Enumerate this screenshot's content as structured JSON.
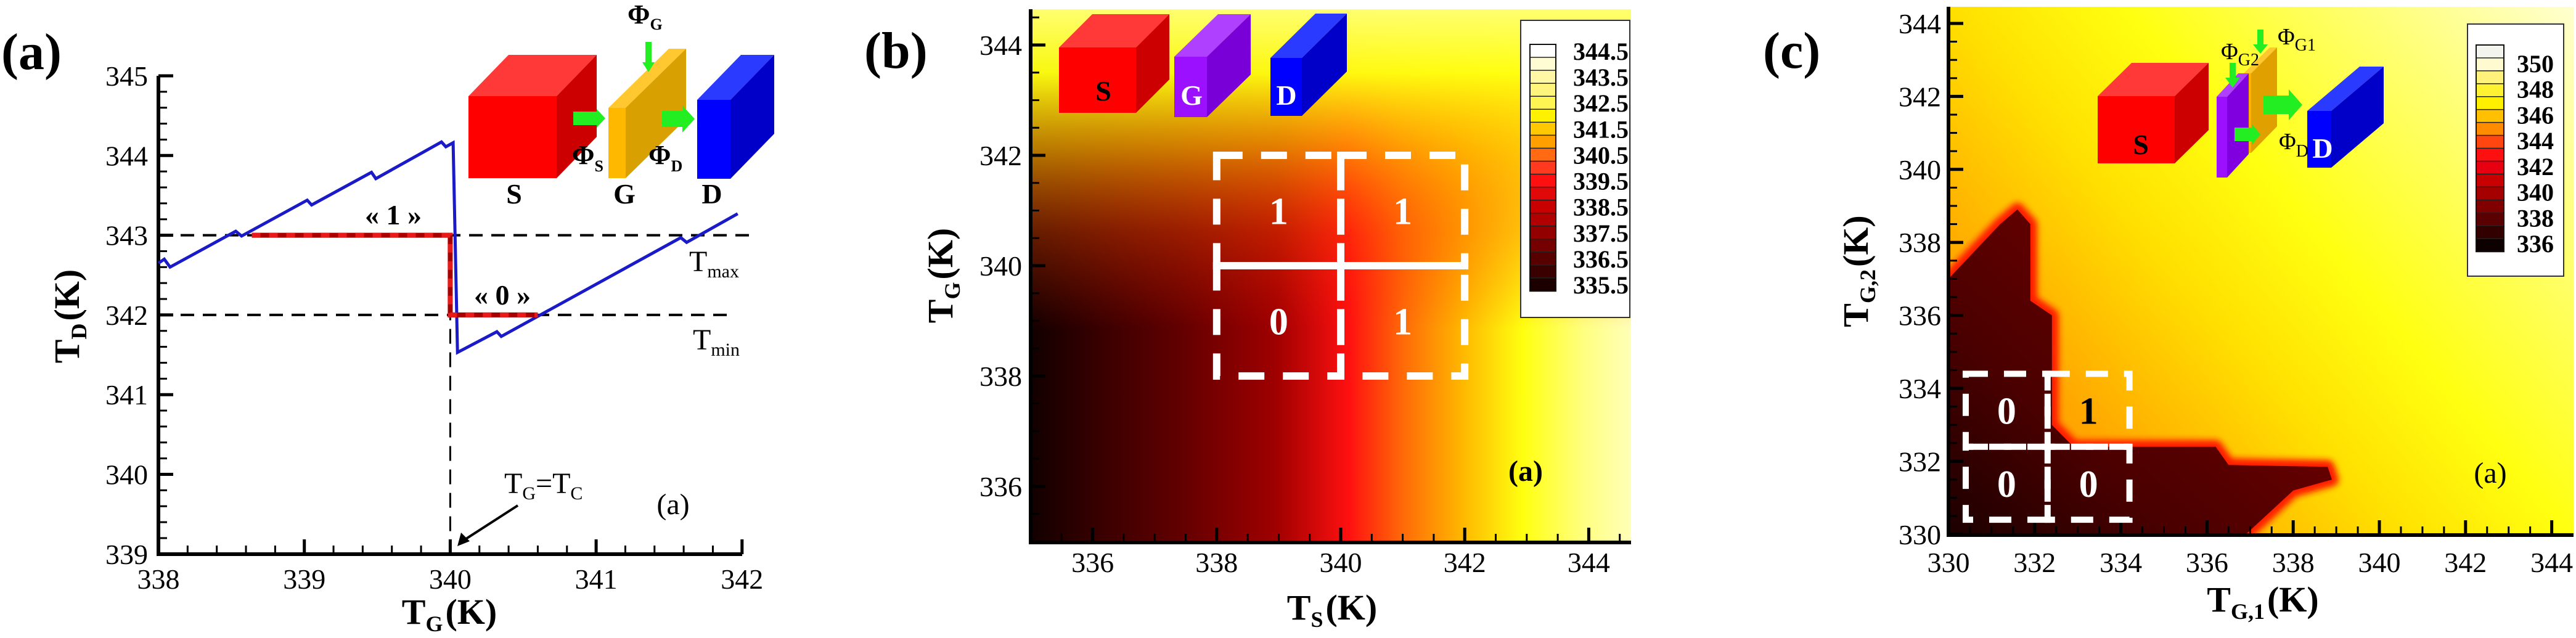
{
  "chart_data": [
    {
      "type": "line",
      "panel_label": "(a)",
      "xlabel": {
        "main": "T",
        "sub": "G",
        "unit": "(K)"
      },
      "ylabel": {
        "main": "T",
        "sub": "D",
        "unit": "(K)"
      },
      "xlim": [
        338,
        342
      ],
      "ylim": [
        339,
        345
      ],
      "x_ticks": [
        "338",
        "339",
        "340",
        "341",
        "342"
      ],
      "x_minor_step": 0.2,
      "y_ticks": [
        "339",
        "340",
        "341",
        "342",
        "343",
        "344",
        "345"
      ],
      "y_minor_step": 0.2,
      "grid": false,
      "series": [
        {
          "color": "#1a1ac8",
          "x": [
            338.0,
            338.04,
            338.08,
            338.53,
            338.57,
            339.02,
            339.05,
            339.46,
            339.49,
            339.94,
            339.97,
            340.02,
            340.05,
            340.32,
            340.35,
            341.58,
            341.62,
            341.97
          ],
          "y": [
            342.65,
            342.7,
            342.6,
            343.05,
            342.99,
            343.44,
            343.38,
            343.79,
            343.71,
            344.17,
            344.11,
            344.16,
            341.53,
            341.79,
            341.73,
            342.97,
            342.91,
            343.27
          ]
        },
        {
          "color": "#e81a1a",
          "x": [
            338.64,
            340.0,
            340.0,
            340.6
          ],
          "y": [
            343,
            343,
            342,
            342
          ]
        }
      ],
      "reference_lines": [
        {
          "axis": "y",
          "value": 343,
          "label": {
            "main": "T",
            "sub": "max"
          }
        },
        {
          "axis": "y",
          "value": 342,
          "label": {
            "main": "T",
            "sub": "min"
          }
        },
        {
          "axis": "x",
          "value": 340
        }
      ],
      "annotations": {
        "state_1": "« 1 »",
        "state_0": "« 0 »",
        "critical": {
          "a": "T",
          "a_sub": "G",
          "eq": "=",
          "b": "T",
          "b_sub": "C"
        },
        "corner": "(a)"
      },
      "schematic": {
        "blocks": [
          "S",
          "G",
          "D"
        ],
        "fluxes": [
          {
            "symbol": "Φ",
            "sub": "G"
          },
          {
            "symbol": "Φ",
            "sub": "S"
          },
          {
            "symbol": "Φ",
            "sub": "D"
          }
        ],
        "colors": {
          "source": "#ff0000",
          "gate": "#ffb800",
          "drain": "#0000ff",
          "flux_arrow": "#22ee22"
        }
      }
    },
    {
      "type": "heatmap",
      "panel_label": "(b)",
      "xlabel": {
        "main": "T",
        "sub": "S",
        "unit": "(K)"
      },
      "ylabel": {
        "main": "T",
        "sub": "G",
        "unit": "(K)"
      },
      "xlim": [
        335,
        344.7
      ],
      "ylim": [
        335,
        344.65
      ],
      "x_ticks": [
        "336",
        "338",
        "340",
        "342",
        "344"
      ],
      "x_minor_step": 0.5,
      "y_ticks": [
        "336",
        "338",
        "340",
        "342",
        "344"
      ],
      "y_minor_step": 0.5,
      "colorbar": {
        "labels": [
          "344.5",
          "343.5",
          "342.5",
          "341.5",
          "340.5",
          "339.5",
          "338.5",
          "337.5",
          "336.5",
          "335.5"
        ],
        "band_colors": [
          "#ffffff",
          "#fffbd2",
          "#fff7a6",
          "#fff57c",
          "#fff552",
          "#fff200",
          "#ffc800",
          "#ffa000",
          "#ff6a12",
          "#ff3a1e",
          "#ff1010",
          "#e00808",
          "#c80000",
          "#b00000",
          "#920000",
          "#740000",
          "#560000",
          "#3a0000",
          "#1c0000"
        ]
      },
      "logic_cells": [
        {
          "x": [
            338,
            340
          ],
          "y": [
            340,
            342
          ],
          "value": "1",
          "text_color": "#ffffff"
        },
        {
          "x": [
            340,
            342
          ],
          "y": [
            340,
            342
          ],
          "value": "1",
          "text_color": "#ffffff"
        },
        {
          "x": [
            338,
            340
          ],
          "y": [
            338,
            340
          ],
          "value": "0",
          "text_color": "#ffffff"
        },
        {
          "x": [
            340,
            342
          ],
          "y": [
            338,
            340
          ],
          "value": "1",
          "text_color": "#ffffff"
        }
      ],
      "annotations": {
        "corner": "(a)"
      },
      "schematic": {
        "blocks": [
          "S",
          "G",
          "D"
        ],
        "colors": {
          "source": "#ff0000",
          "gate": "#9a10ff",
          "drain": "#0000ff"
        }
      }
    },
    {
      "type": "heatmap",
      "panel_label": "(c)",
      "xlabel": {
        "main": "T",
        "sub": "G,1",
        "unit": "(K)"
      },
      "ylabel": {
        "main": "T",
        "sub": "G,2",
        "unit": "(K)"
      },
      "xlim": [
        330,
        344.5
      ],
      "ylim": [
        330,
        344.45
      ],
      "x_ticks": [
        "330",
        "332",
        "334",
        "336",
        "338",
        "340",
        "342",
        "344"
      ],
      "x_minor_step": 0.5,
      "y_ticks": [
        "330",
        "332",
        "334",
        "336",
        "338",
        "340",
        "342",
        "344"
      ],
      "y_minor_step": 0.5,
      "colorbar": {
        "labels": [
          "350",
          "348",
          "346",
          "344",
          "342",
          "340",
          "338",
          "336"
        ],
        "band_colors": [
          "#f4f4ee",
          "#fffad0",
          "#fff27a",
          "#fff233",
          "#fff000",
          "#ffc000",
          "#ff8c00",
          "#ff4510",
          "#ff1010",
          "#e80010",
          "#c80000",
          "#a50000",
          "#800000",
          "#5a0000",
          "#330000",
          "#0c0000"
        ]
      },
      "low_region_polygon": [
        [
          330,
          330
        ],
        [
          330,
          337.0
        ],
        [
          331.2,
          338.5
        ],
        [
          331.6,
          338.9
        ],
        [
          331.9,
          338.5
        ],
        [
          331.9,
          336.4
        ],
        [
          332.4,
          336.0
        ],
        [
          332.4,
          333.0
        ],
        [
          332.9,
          332.4
        ],
        [
          336.2,
          332.4
        ],
        [
          336.5,
          331.9
        ],
        [
          338.8,
          331.85
        ],
        [
          338.9,
          331.5
        ],
        [
          338.0,
          331.2
        ],
        [
          336.9,
          330
        ]
      ],
      "logic_cells": [
        {
          "x": [
            330.4,
            332.3
          ],
          "y": [
            332.4,
            334.4
          ],
          "value": "0",
          "text_color": "#ffffff"
        },
        {
          "x": [
            332.3,
            334.2
          ],
          "y": [
            332.4,
            334.4
          ],
          "value": "1",
          "text_color": "#000000"
        },
        {
          "x": [
            330.4,
            332.3
          ],
          "y": [
            330.4,
            332.4
          ],
          "value": "0",
          "text_color": "#ffffff"
        },
        {
          "x": [
            332.3,
            334.2
          ],
          "y": [
            330.4,
            332.4
          ],
          "value": "0",
          "text_color": "#ffffff"
        }
      ],
      "annotations": {
        "corner": "(a)"
      },
      "schematic": {
        "blocks": [
          "S",
          "D"
        ],
        "fluxes": [
          {
            "symbol": "Φ",
            "sub": "G1"
          },
          {
            "symbol": "Φ",
            "sub": "G2"
          },
          {
            "symbol": "Φ",
            "sub": "D"
          }
        ],
        "colors": {
          "source": "#ff0000",
          "gate1": "#ffb000",
          "gate2": "#9a10ff",
          "drain": "#0000ff",
          "flux_arrow": "#22ee22"
        }
      }
    }
  ]
}
